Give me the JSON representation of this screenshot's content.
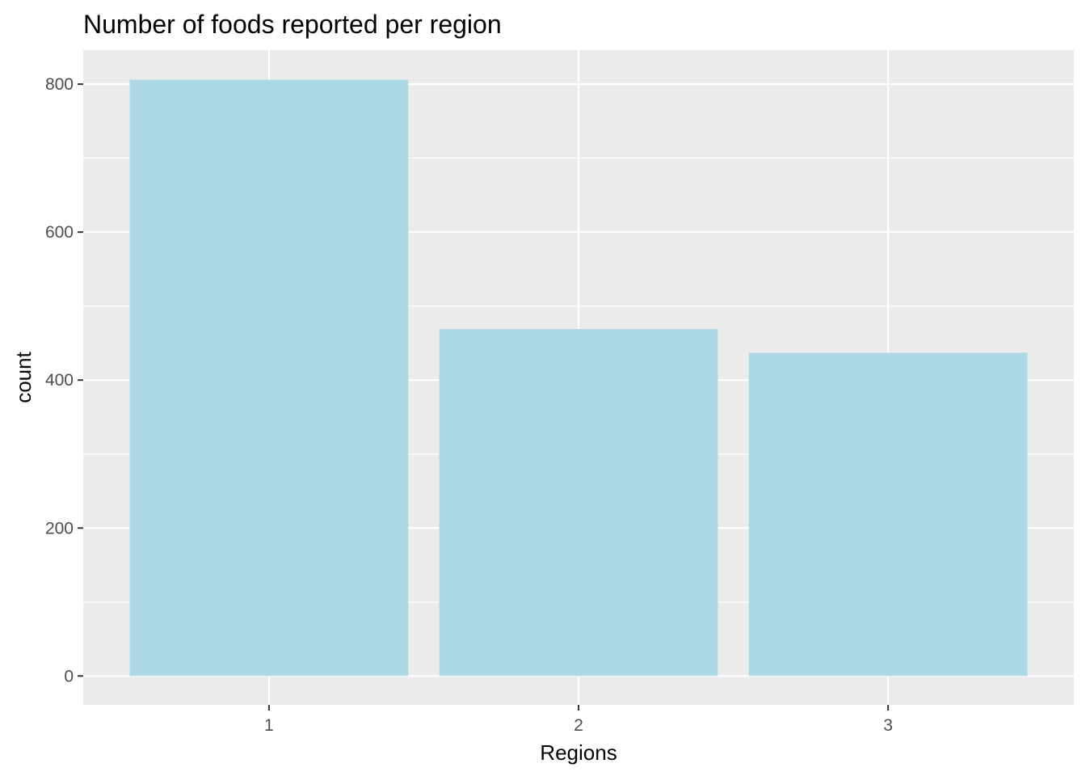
{
  "chart_data": {
    "type": "bar",
    "title": "Number of foods reported per region",
    "xlabel": "Regions",
    "ylabel": "count",
    "categories": [
      "1",
      "2",
      "3"
    ],
    "values": [
      806,
      469,
      437
    ],
    "ylim": [
      -39,
      846
    ],
    "yticks": [
      0,
      200,
      400,
      600,
      800
    ],
    "grid": true,
    "legend": "none",
    "colors": {
      "bar": "#add8e6",
      "panel": "#ebebeb",
      "grid": "#ffffff",
      "tick": "#333333",
      "tick_label": "#4d4d4d"
    }
  }
}
